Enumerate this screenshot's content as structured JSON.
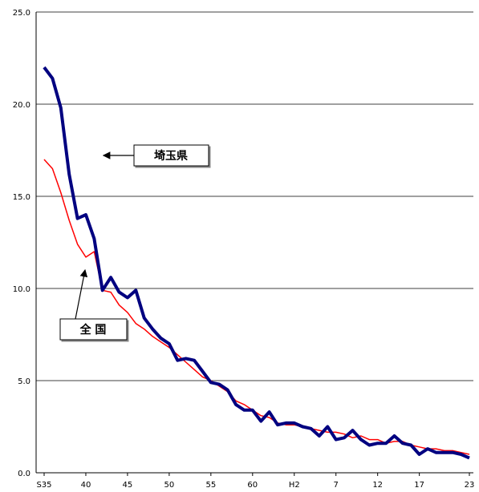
{
  "chart_data": {
    "type": "line",
    "title": "",
    "xlabel": "",
    "ylabel": "",
    "ylim": [
      0,
      25
    ],
    "yticks": [
      "0.0",
      "5.0",
      "10.0",
      "15.0",
      "20.0",
      "25.0"
    ],
    "grid": true,
    "x_tick_labels": [
      {
        "label": "S35",
        "index": 0
      },
      {
        "label": "40",
        "index": 5
      },
      {
        "label": "45",
        "index": 10
      },
      {
        "label": "50",
        "index": 15
      },
      {
        "label": "55",
        "index": 20
      },
      {
        "label": "60",
        "index": 25
      },
      {
        "label": "H2",
        "index": 30
      },
      {
        "label": "7",
        "index": 35
      },
      {
        "label": "12",
        "index": 40
      },
      {
        "label": "17",
        "index": 45
      },
      {
        "label": "23",
        "index": 51
      }
    ],
    "series": [
      {
        "name": "埼玉県",
        "color": "#000080",
        "values": [
          22.0,
          21.4,
          19.8,
          16.2,
          13.8,
          14.0,
          12.7,
          9.9,
          10.6,
          9.8,
          9.5,
          9.9,
          8.4,
          7.8,
          7.3,
          7.0,
          6.1,
          6.2,
          6.1,
          5.5,
          4.9,
          4.8,
          4.5,
          3.7,
          3.4,
          3.4,
          2.8,
          3.3,
          2.6,
          2.7,
          2.7,
          2.5,
          2.4,
          2.0,
          2.5,
          1.8,
          1.9,
          2.3,
          1.8,
          1.5,
          1.6,
          1.6,
          2.0,
          1.6,
          1.5,
          1.0,
          1.3,
          1.1,
          1.1,
          1.1,
          1.0,
          0.8
        ]
      },
      {
        "name": "全 国",
        "color": "#ff0000",
        "values": [
          17.0,
          16.5,
          15.2,
          13.7,
          12.4,
          11.7,
          12.0,
          9.9,
          9.8,
          9.1,
          8.7,
          8.1,
          7.8,
          7.4,
          7.1,
          6.8,
          6.4,
          6.0,
          5.6,
          5.2,
          5.0,
          4.7,
          4.4,
          3.9,
          3.7,
          3.4,
          3.1,
          3.0,
          2.7,
          2.6,
          2.6,
          2.5,
          2.4,
          2.3,
          2.2,
          2.2,
          2.1,
          1.9,
          2.0,
          1.8,
          1.8,
          1.6,
          1.7,
          1.7,
          1.5,
          1.4,
          1.3,
          1.3,
          1.2,
          1.2,
          1.1,
          1.0
        ]
      }
    ],
    "annotations": [
      {
        "text": "埼玉県",
        "target_series": 0
      },
      {
        "text": "全 国",
        "target_series": 1
      }
    ]
  }
}
